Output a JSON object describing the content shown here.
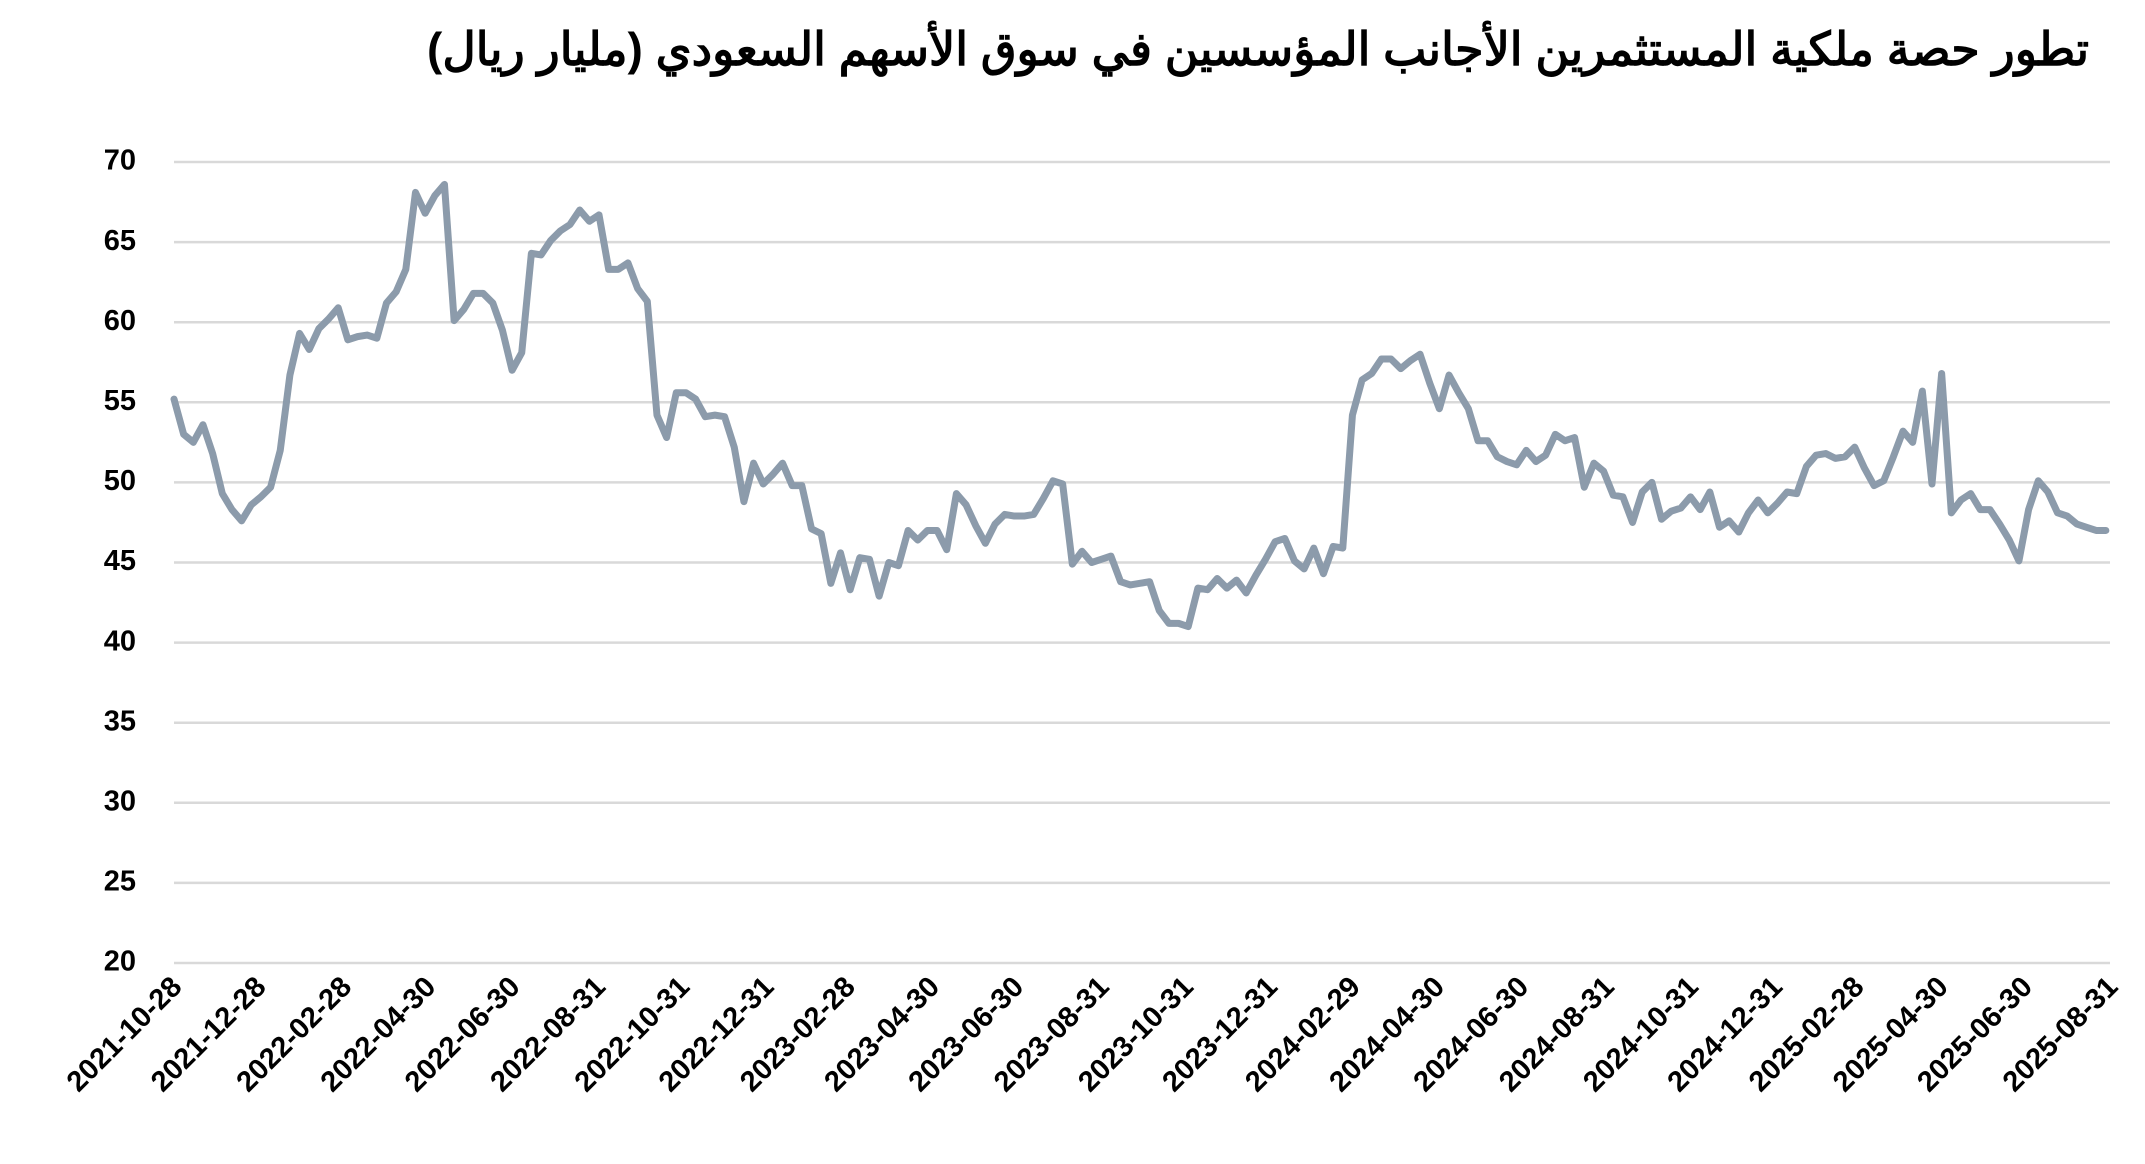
{
  "chart_data": {
    "type": "line",
    "title": "تطور حصة ملكية المستثمرين الأجانب المؤسسين في سوق الأسهم السعودي (مليار ريال)",
    "color": "#8c9bab",
    "grid": true,
    "ylim": [
      20,
      70
    ],
    "yticks": [
      20,
      25,
      30,
      35,
      40,
      45,
      50,
      55,
      60,
      65,
      70
    ],
    "xlim": [
      "2021-10-28",
      "2025-08-31"
    ],
    "xticks": [
      "2021-10-28",
      "2021-12-28",
      "2022-02-28",
      "2022-04-30",
      "2022-06-30",
      "2022-08-31",
      "2022-10-31",
      "2022-12-31",
      "2023-02-28",
      "2023-04-30",
      "2023-06-30",
      "2023-08-31",
      "2023-10-31",
      "2023-12-31",
      "2024-02-29",
      "2024-04-30",
      "2024-06-30",
      "2024-08-31",
      "2024-10-31",
      "2024-12-31",
      "2025-02-28",
      "2025-04-30",
      "2025-06-30",
      "2025-08-31"
    ],
    "x": [
      "2021-10-28",
      "2021-11-04",
      "2021-11-11",
      "2021-11-18",
      "2021-11-25",
      "2021-12-02",
      "2021-12-09",
      "2021-12-16",
      "2021-12-23",
      "2021-12-30",
      "2022-01-06",
      "2022-01-13",
      "2022-01-20",
      "2022-01-27",
      "2022-02-03",
      "2022-02-10",
      "2022-02-17",
      "2022-02-24",
      "2022-03-03",
      "2022-03-10",
      "2022-03-17",
      "2022-03-24",
      "2022-03-31",
      "2022-04-07",
      "2022-04-14",
      "2022-04-21",
      "2022-04-28",
      "2022-05-05",
      "2022-05-12",
      "2022-05-19",
      "2022-05-26",
      "2022-06-02",
      "2022-06-09",
      "2022-06-16",
      "2022-06-23",
      "2022-06-30",
      "2022-07-07",
      "2022-07-14",
      "2022-07-21",
      "2022-07-28",
      "2022-08-04",
      "2022-08-11",
      "2022-08-18",
      "2022-08-25",
      "2022-09-01",
      "2022-09-08",
      "2022-09-15",
      "2022-09-22",
      "2022-09-29",
      "2022-10-06",
      "2022-10-13",
      "2022-10-20",
      "2022-10-27",
      "2022-11-03",
      "2022-11-10",
      "2022-11-17",
      "2022-11-24",
      "2022-12-01",
      "2022-12-08",
      "2022-12-15",
      "2022-12-22",
      "2022-12-29",
      "2023-01-05",
      "2023-01-12",
      "2023-01-19",
      "2023-01-26",
      "2023-02-02",
      "2023-02-09",
      "2023-02-16",
      "2023-02-23",
      "2023-03-02",
      "2023-03-09",
      "2023-03-16",
      "2023-03-23",
      "2023-03-30",
      "2023-04-06",
      "2023-04-13",
      "2023-04-20",
      "2023-04-27",
      "2023-05-04",
      "2023-05-11",
      "2023-05-18",
      "2023-05-25",
      "2023-06-01",
      "2023-06-08",
      "2023-06-15",
      "2023-06-22",
      "2023-06-29",
      "2023-07-06",
      "2023-07-13",
      "2023-07-20",
      "2023-07-27",
      "2023-08-03",
      "2023-08-10",
      "2023-08-17",
      "2023-08-24",
      "2023-08-31",
      "2023-09-07",
      "2023-09-14",
      "2023-09-21",
      "2023-09-28",
      "2023-10-05",
      "2023-10-12",
      "2023-10-19",
      "2023-10-26",
      "2023-11-02",
      "2023-11-09",
      "2023-11-16",
      "2023-11-23",
      "2023-11-30",
      "2023-12-07",
      "2023-12-14",
      "2023-12-21",
      "2023-12-28",
      "2024-01-04",
      "2024-01-11",
      "2024-01-18",
      "2024-01-25",
      "2024-02-01",
      "2024-02-08",
      "2024-02-15",
      "2024-02-22",
      "2024-02-29",
      "2024-03-07",
      "2024-03-14",
      "2024-03-21",
      "2024-03-28",
      "2024-04-04",
      "2024-04-11",
      "2024-04-18",
      "2024-04-25",
      "2024-05-02",
      "2024-05-09",
      "2024-05-16",
      "2024-05-23",
      "2024-05-30",
      "2024-06-06",
      "2024-06-13",
      "2024-06-20",
      "2024-06-27",
      "2024-07-04",
      "2024-07-11",
      "2024-07-18",
      "2024-07-25",
      "2024-08-01",
      "2024-08-08",
      "2024-08-15",
      "2024-08-22",
      "2024-08-29",
      "2024-09-05",
      "2024-09-12",
      "2024-09-19",
      "2024-09-26",
      "2024-10-03",
      "2024-10-10",
      "2024-10-17",
      "2024-10-24",
      "2024-10-31",
      "2024-11-07",
      "2024-11-14",
      "2024-11-21",
      "2024-11-28",
      "2024-12-05",
      "2024-12-12",
      "2024-12-19",
      "2024-12-26",
      "2025-01-02",
      "2025-01-09",
      "2025-01-16",
      "2025-01-23",
      "2025-01-30",
      "2025-02-06",
      "2025-02-13",
      "2025-02-20",
      "2025-02-27",
      "2025-03-06",
      "2025-03-13",
      "2025-03-20",
      "2025-03-27",
      "2025-04-03",
      "2025-04-10",
      "2025-04-17",
      "2025-04-24",
      "2025-05-01",
      "2025-05-08",
      "2025-05-15",
      "2025-05-22",
      "2025-05-29",
      "2025-06-05",
      "2025-06-12",
      "2025-06-19",
      "2025-06-26",
      "2025-07-03",
      "2025-07-10",
      "2025-07-17",
      "2025-07-24",
      "2025-07-31",
      "2025-08-07",
      "2025-08-14",
      "2025-08-21",
      "2025-08-28"
    ],
    "values": [
      55.2,
      53,
      52.5,
      53.6,
      51.8,
      49.3,
      48.3,
      47.6,
      48.6,
      49.1,
      49.7,
      52,
      56.7,
      59.3,
      58.3,
      59.6,
      60.2,
      60.9,
      58.9,
      59.1,
      59.2,
      59.0,
      61.2,
      61.9,
      63.3,
      68.1,
      66.8,
      67.9,
      68.6,
      60.1,
      60.8,
      61.8,
      61.8,
      61.2,
      59.5,
      57.0,
      58.1,
      64.3,
      64.2,
      65.1,
      65.7,
      66.1,
      67.0,
      66.3,
      66.7,
      63.3,
      63.3,
      63.7,
      62.1,
      61.3,
      54.2,
      52.8,
      55.6,
      55.6,
      55.2,
      54.1,
      54.2,
      54.1,
      52.2,
      48.8,
      51.2,
      49.9,
      50.5,
      51.2,
      49.8,
      49.8,
      47.1,
      46.8,
      43.7,
      45.6,
      43.3,
      45.3,
      45.2,
      42.9,
      45.0,
      44.8,
      47.0,
      46.4,
      47.0,
      47.0,
      45.8,
      49.3,
      48.6,
      47.3,
      46.2,
      47.4,
      48.0,
      47.9,
      47.9,
      48.0,
      49.0,
      50.1,
      49.9,
      44.9,
      45.7,
      45.0,
      45.2,
      45.4,
      43.8,
      43.6,
      43.7,
      43.8,
      42.0,
      41.2,
      41.2,
      41.0,
      43.4,
      43.3,
      44.0,
      43.4,
      43.9,
      43.1,
      44.2,
      45.2,
      46.3,
      46.5,
      45.1,
      44.6,
      45.9,
      44.3,
      46.0,
      45.9,
      54.2,
      56.4,
      56.8,
      57.7,
      57.7,
      57.1,
      57.6,
      58.0,
      56.2,
      54.6,
      56.7,
      55.6,
      54.6,
      52.6,
      52.6,
      51.6,
      51.3,
      51.1,
      52.0,
      51.3,
      51.7,
      53.0,
      52.6,
      52.8,
      49.7,
      51.2,
      50.7,
      49.2,
      49.1,
      47.5,
      49.4,
      50.0,
      47.7,
      48.2,
      48.4,
      49.1,
      48.3,
      49.4,
      47.2,
      47.6,
      46.9,
      48.1,
      48.9,
      48.1,
      48.7,
      49.4,
      49.3,
      51.0,
      51.7,
      51.8,
      51.5,
      51.6,
      52.2,
      50.9,
      49.8,
      50.1,
      51.6,
      53.2,
      52.5,
      55.7,
      49.9,
      56.8,
      48.1,
      48.9,
      49.3,
      48.3,
      48.3,
      47.4,
      46.4,
      45.1,
      48.3,
      50.1,
      49.4,
      48.1,
      47.9,
      47.4,
      47.2,
      47.0,
      47.0
    ]
  }
}
